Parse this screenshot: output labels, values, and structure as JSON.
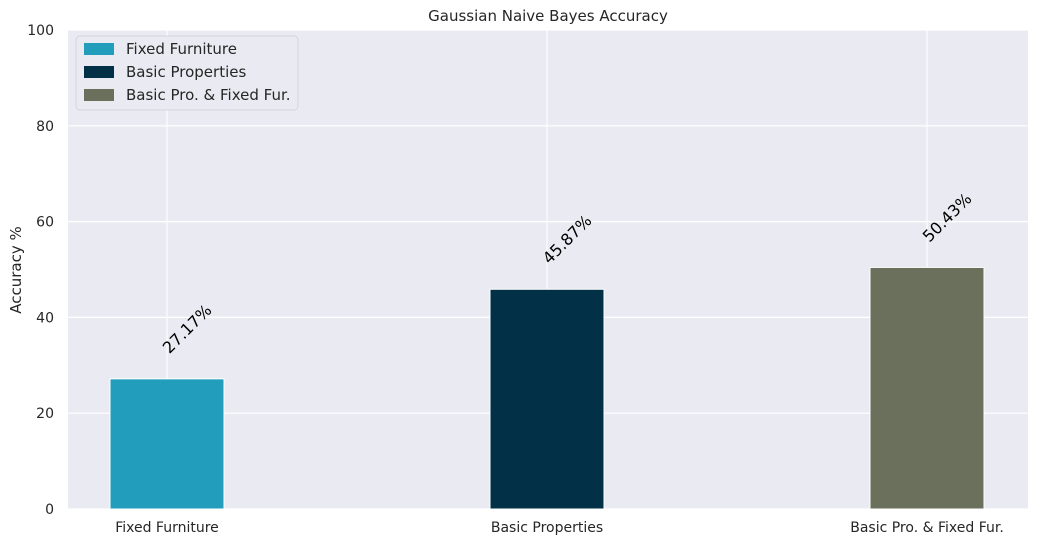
{
  "chart_data": {
    "type": "bar",
    "title": "Gaussian Naive Bayes Accuracy",
    "xlabel": "",
    "ylabel": "Accuracy %",
    "ylim": [
      0,
      100
    ],
    "yticks": [
      0,
      20,
      40,
      60,
      80,
      100
    ],
    "categories": [
      "Fixed Furniture",
      "Basic Properties",
      "Basic Pro. & Fixed Fur."
    ],
    "values": [
      27.17,
      45.87,
      50.43
    ],
    "value_labels": [
      "27.17%",
      "45.87%",
      "50.43%"
    ],
    "colors": [
      "#229ebc",
      "#023047",
      "#6b705c"
    ],
    "grid": true,
    "legend": {
      "placement": "top-left",
      "entries": [
        "Fixed Furniture",
        "Basic Properties",
        "Basic Pro. & Fixed Fur."
      ]
    }
  }
}
